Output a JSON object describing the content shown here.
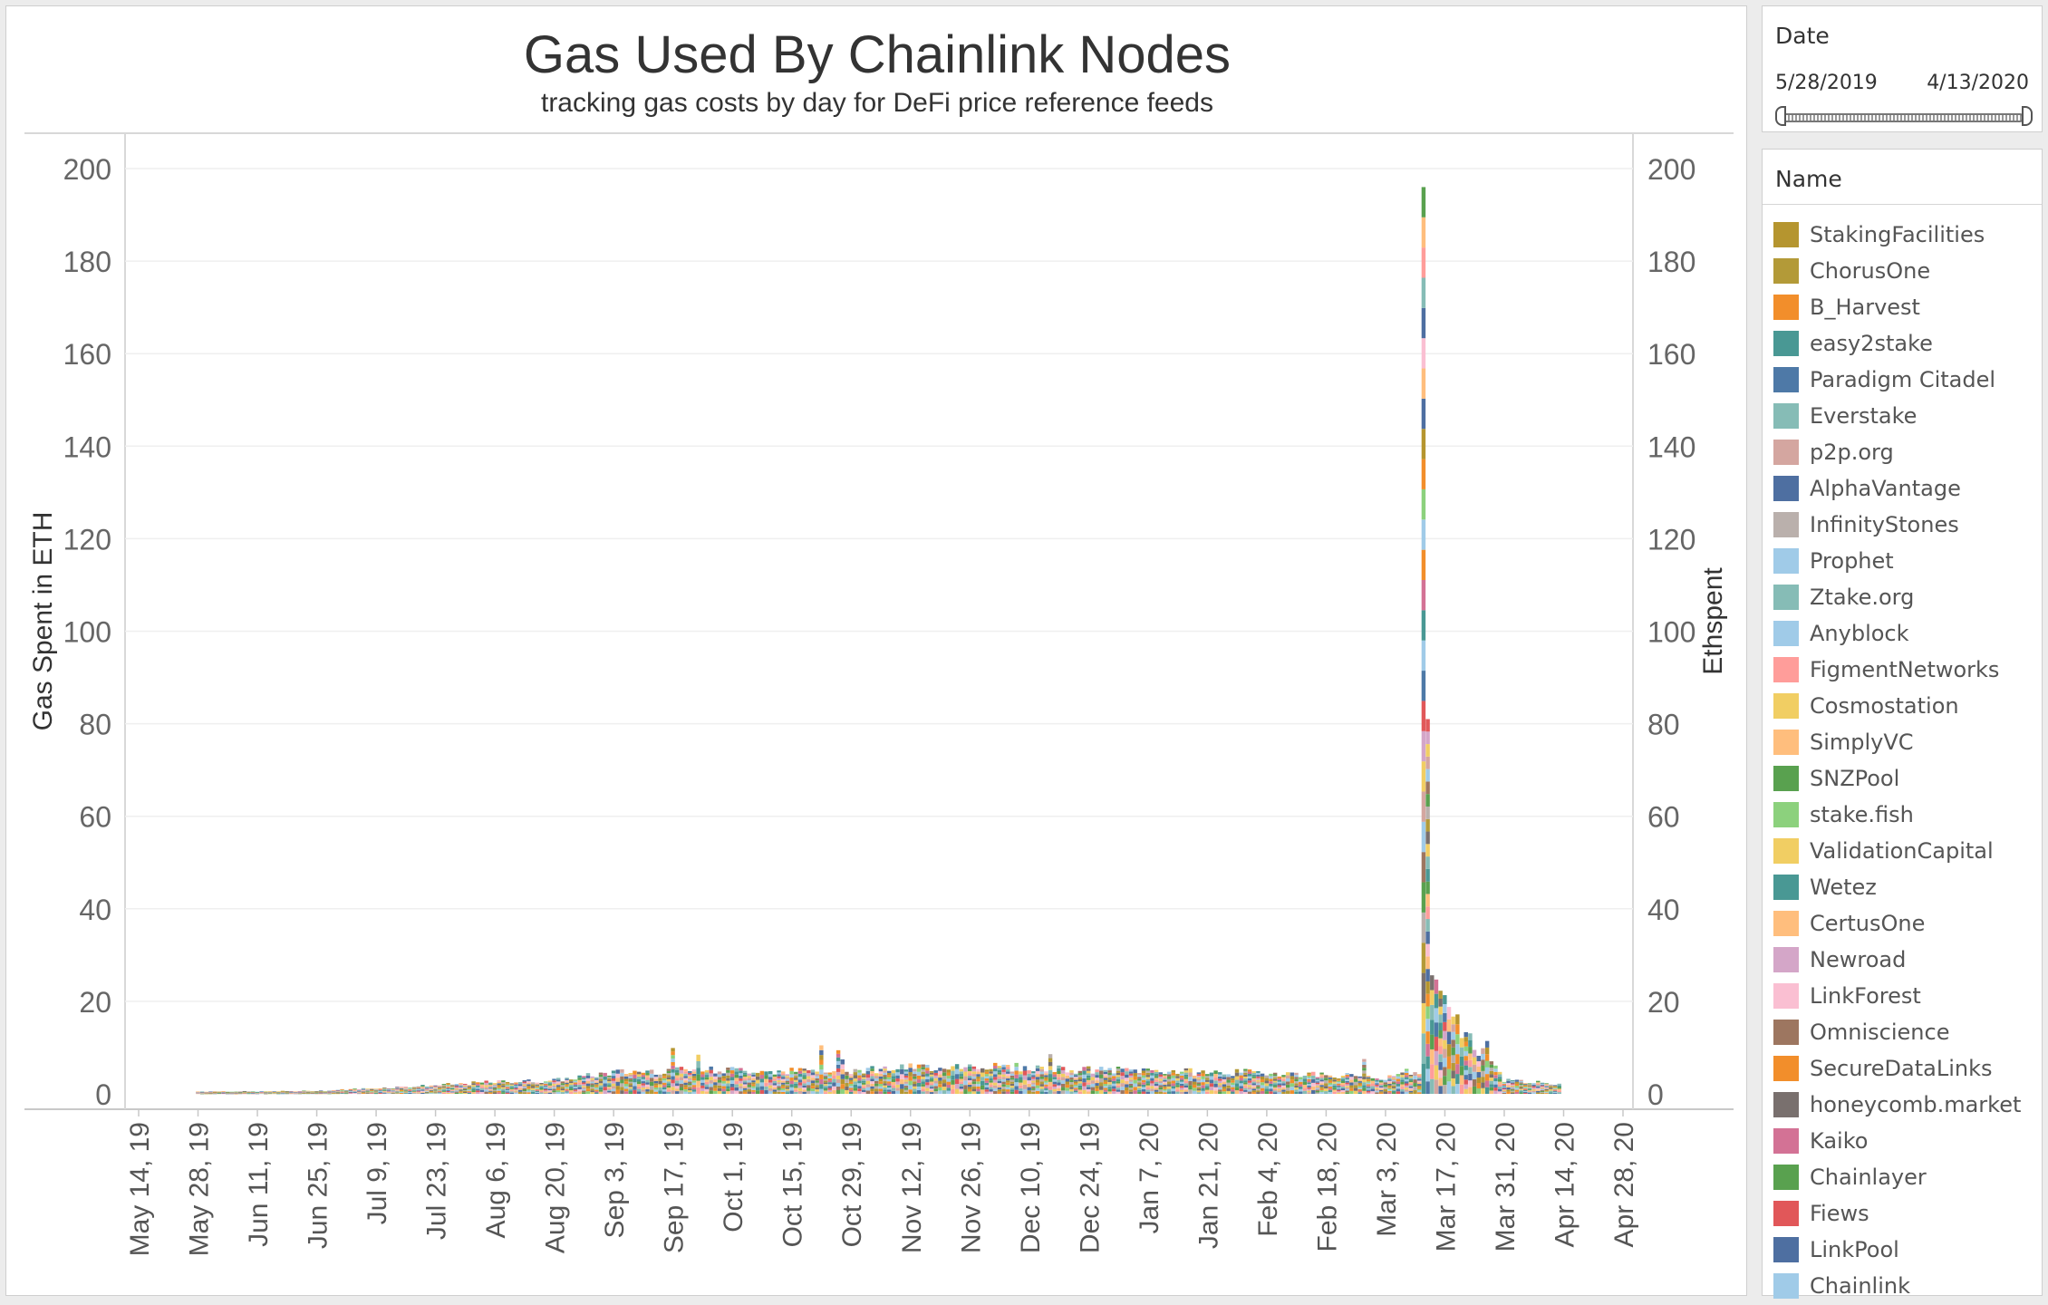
{
  "chart_data": {
    "type": "bar",
    "stacked": true,
    "title": "Gas Used By Chainlink Nodes",
    "subtitle": "tracking gas costs by day for DeFi price reference feeds",
    "ylabel": "Gas Spent in ETH",
    "ylabel_right": "Ethspent",
    "ylim": [
      0,
      200
    ],
    "yticks": [
      "200",
      "180",
      "160",
      "140",
      "120",
      "100",
      "80",
      "60",
      "40",
      "20",
      "0"
    ],
    "xlim": [
      "2019-05-14",
      "2020-04-28"
    ],
    "xticks": [
      "May 14, 19",
      "May 28, 19",
      "Jun 11, 19",
      "Jun 25, 19",
      "Jul 9, 19",
      "Jul 23, 19",
      "Aug 6, 19",
      "Aug 20, 19",
      "Sep 3, 19",
      "Sep 17, 19",
      "Oct 1, 19",
      "Oct 15, 19",
      "Oct 29, 19",
      "Nov 12, 19",
      "Nov 26, 19",
      "Dec 10, 19",
      "Dec 24, 19",
      "Jan 7, 20",
      "Jan 21, 20",
      "Feb 4, 20",
      "Feb 18, 20",
      "Mar 3, 20",
      "Mar 17, 20",
      "Mar 31, 20",
      "Apr 14, 20",
      "Apr 28, 20"
    ],
    "grid": true,
    "daily_total": {
      "x": [
        "2019-05-28",
        "2019-06-11",
        "2019-06-25",
        "2019-07-09",
        "2019-07-23",
        "2019-08-06",
        "2019-08-20",
        "2019-09-03",
        "2019-09-17",
        "2019-10-01",
        "2019-10-15",
        "2019-10-29",
        "2019-11-12",
        "2019-11-26",
        "2019-12-10",
        "2019-12-24",
        "2020-01-07",
        "2020-01-21",
        "2020-02-04",
        "2020-02-18",
        "2020-03-03",
        "2020-03-10",
        "2020-03-12",
        "2020-03-13",
        "2020-03-14",
        "2020-03-17",
        "2020-03-31",
        "2020-04-13"
      ],
      "y": [
        0.5,
        0.5,
        0.6,
        1.2,
        1.8,
        2.5,
        2.8,
        4.5,
        5.0,
        5.0,
        4.8,
        5.0,
        5.5,
        6.0,
        5.5,
        5.0,
        5.0,
        4.5,
        4.5,
        4.0,
        3.5,
        5.0,
        196.0,
        81.0,
        23.0,
        18.0,
        3.0,
        2.0
      ]
    },
    "series": [
      {
        "name": "StakingFacilities",
        "color": "#b5952f"
      },
      {
        "name": "ChorusOne",
        "color": "#b39a38"
      },
      {
        "name": "B_Harvest",
        "color": "#f28e2b"
      },
      {
        "name": "easy2stake",
        "color": "#499894"
      },
      {
        "name": "Paradigm Citadel",
        "color": "#4e79a7"
      },
      {
        "name": "Everstake",
        "color": "#86bcb6"
      },
      {
        "name": "p2p.org",
        "color": "#d4a6a0"
      },
      {
        "name": "AlphaVantage",
        "color": "#4e6fa1"
      },
      {
        "name": "InfinityStones",
        "color": "#bab0ac"
      },
      {
        "name": "Prophet",
        "color": "#a0cbe8"
      },
      {
        "name": "Ztake.org",
        "color": "#86bcb6"
      },
      {
        "name": "Anyblock",
        "color": "#a0cbe8"
      },
      {
        "name": "FigmentNetworks",
        "color": "#ff9d9a"
      },
      {
        "name": "Cosmostation",
        "color": "#f1ce63"
      },
      {
        "name": "SimplyVC",
        "color": "#ffbe7d"
      },
      {
        "name": "SNZPool",
        "color": "#59a14f"
      },
      {
        "name": "stake.fish",
        "color": "#8cd17d"
      },
      {
        "name": "ValidationCapital",
        "color": "#f1ce63"
      },
      {
        "name": "Wetez",
        "color": "#499894"
      },
      {
        "name": "CertusOne",
        "color": "#ffbe7d"
      },
      {
        "name": "Newroad",
        "color": "#d4a6c8"
      },
      {
        "name": "LinkForest",
        "color": "#fabfd2"
      },
      {
        "name": "Omniscience",
        "color": "#9d7660"
      },
      {
        "name": "SecureDataLinks",
        "color": "#f28e2b"
      },
      {
        "name": "honeycomb.market",
        "color": "#79706e"
      },
      {
        "name": "Kaiko",
        "color": "#d37295"
      },
      {
        "name": "Chainlayer",
        "color": "#59a14f"
      },
      {
        "name": "Fiews",
        "color": "#e15759"
      },
      {
        "name": "LinkPool",
        "color": "#4e6fa1"
      },
      {
        "name": "Chainlink",
        "color": "#a0cbe8"
      }
    ]
  },
  "filters": {
    "date": {
      "label": "Date",
      "start": "5/28/2019",
      "end": "4/13/2020"
    }
  },
  "legend": {
    "title": "Name"
  }
}
